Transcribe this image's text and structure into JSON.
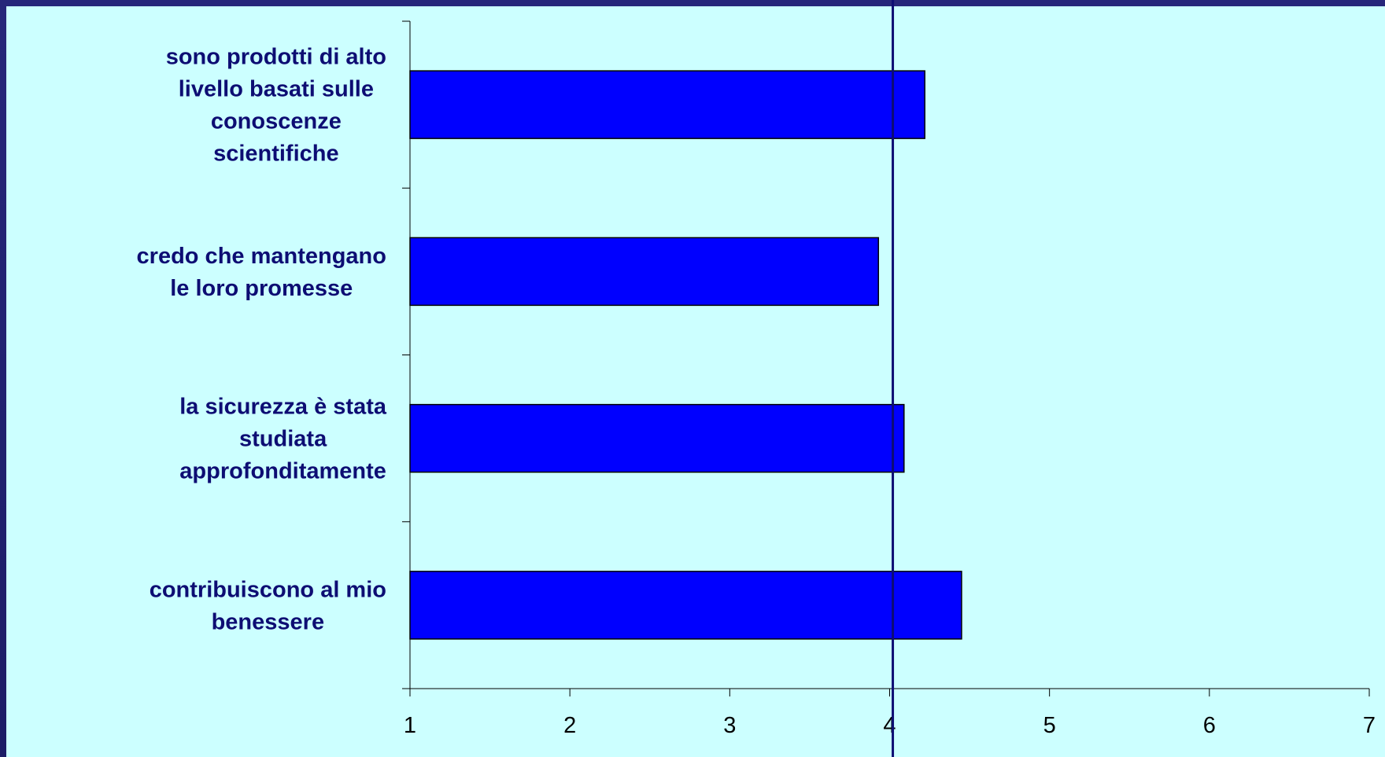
{
  "colors": {
    "background": "#1c1c66",
    "plot_area": "#ccffff",
    "bar_fill": "#0000ff",
    "bar_stroke": "#000000",
    "reference_line": "#0d0d73",
    "category_text": "#0d0d73"
  },
  "chart_data": {
    "type": "bar",
    "orientation": "horizontal",
    "categories": [
      [
        "sono prodotti di alto",
        "livello basati sulle",
        "conoscenze",
        "scientifiche"
      ],
      [
        "credo che mantengano",
        "le loro promesse"
      ],
      [
        "la sicurezza è stata",
        "studiata",
        "approfonditamente"
      ],
      [
        "contribuiscono al mio",
        "benessere"
      ]
    ],
    "values": [
      4.22,
      3.93,
      4.09,
      4.45
    ],
    "xlim": [
      1,
      7
    ],
    "xticks": [
      "1",
      "2",
      "3",
      "4",
      "5",
      "6",
      "7"
    ],
    "reference_line": 4.02,
    "title": "",
    "xlabel": "",
    "ylabel": "",
    "grid": false,
    "legend": "none"
  }
}
